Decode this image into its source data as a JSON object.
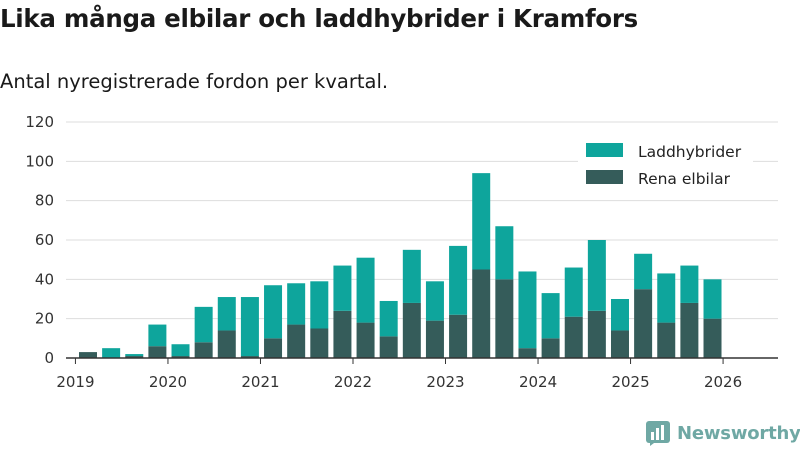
{
  "header": {
    "title": "Lika många elbilar och laddhybrider i Kramfors",
    "subtitle": "Antal nyregistrerade fordon per kvartal."
  },
  "branding": {
    "name": "Newsworthy",
    "logo_icon": "bar-chart-logo-icon",
    "color": "#6fa8a4"
  },
  "colors": {
    "laddhybrider": "#0ea59c",
    "rena_elbilar": "#355c5a",
    "grid": "#dddddd",
    "axis": "#333333"
  },
  "chart_data": {
    "type": "bar",
    "stacked": true,
    "ylim": [
      0,
      120
    ],
    "y_ticks": [
      "0",
      "20",
      "40",
      "60",
      "80",
      "100",
      "120"
    ],
    "x_tick_labels": [
      "2019",
      "2020",
      "2021",
      "2022",
      "2023",
      "2024",
      "2025",
      "2026"
    ],
    "categories": [
      "2019 Q1",
      "2019 Q2",
      "2019 Q3",
      "2019 Q4",
      "2020 Q1",
      "2020 Q2",
      "2020 Q3",
      "2020 Q4",
      "2021 Q1",
      "2021 Q2",
      "2021 Q3",
      "2021 Q4",
      "2022 Q1",
      "2022 Q2",
      "2022 Q3",
      "2022 Q4",
      "2023 Q1",
      "2023 Q2",
      "2023 Q3",
      "2023 Q4",
      "2024 Q1",
      "2024 Q2",
      "2024 Q3",
      "2024 Q4",
      "2025 Q1",
      "2025 Q2",
      "2025 Q3",
      "2025 Q4",
      "2026 Q1"
    ],
    "series": [
      {
        "name": "Rena elbilar",
        "color": "#355c5a",
        "values": [
          3,
          0,
          1,
          6,
          1,
          8,
          14,
          1,
          10,
          17,
          15,
          24,
          18,
          11,
          28,
          19,
          22,
          45,
          40,
          5,
          10,
          21,
          24,
          14,
          35,
          18,
          28,
          20,
          0
        ]
      },
      {
        "name": "Laddhybrider",
        "color": "#0ea59c",
        "values": [
          0,
          5,
          1,
          11,
          6,
          18,
          17,
          30,
          27,
          21,
          24,
          23,
          33,
          18,
          27,
          20,
          35,
          49,
          27,
          39,
          23,
          25,
          36,
          16,
          18,
          25,
          19,
          20,
          0
        ]
      }
    ],
    "legend": {
      "position": "top-right",
      "entries": [
        {
          "label": "Laddhybrider",
          "color": "#0ea59c"
        },
        {
          "label": "Rena elbilar",
          "color": "#355c5a"
        }
      ]
    },
    "grid": true
  }
}
